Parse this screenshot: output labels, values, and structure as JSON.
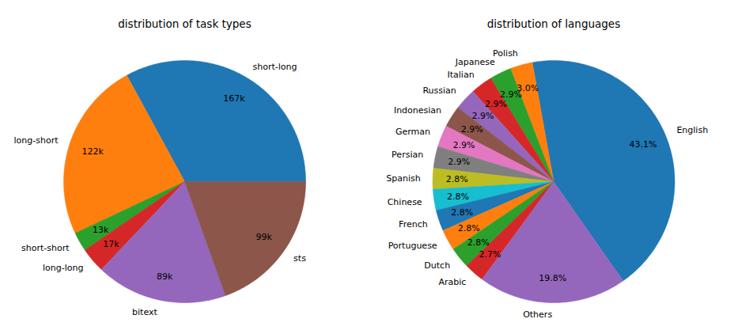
{
  "chart_data": [
    {
      "type": "pie",
      "title": "distribution of task types",
      "categories": [
        "short-long",
        "long-short",
        "short-short",
        "long-long",
        "bitext",
        "sts"
      ],
      "values": [
        167000,
        122000,
        13000,
        17000,
        89000,
        99000
      ],
      "value_labels": [
        "167k",
        "122k",
        "13k",
        "17k",
        "89k",
        "99k"
      ],
      "colors": [
        "#1f77b4",
        "#ff7f0e",
        "#2ca02c",
        "#d62728",
        "#9467bd",
        "#8c564b"
      ],
      "data_labels": true
    },
    {
      "type": "pie",
      "title": "distribution of languages",
      "categories": [
        "English",
        "Polish",
        "Japanese",
        "Italian",
        "Russian",
        "Indonesian",
        "German",
        "Persian",
        "Spanish",
        "Chinese",
        "French",
        "Portuguese",
        "Dutch",
        "Arabic",
        "Others"
      ],
      "values": [
        43.1,
        3.0,
        2.9,
        2.9,
        2.9,
        2.9,
        2.9,
        2.9,
        2.8,
        2.8,
        2.8,
        2.8,
        2.8,
        2.7,
        19.8
      ],
      "value_labels": [
        "43.1%",
        "3.0%",
        "2.9%",
        "2.9%",
        "2.9%",
        "2.9%",
        "2.9%",
        "2.9%",
        "2.8%",
        "2.8%",
        "2.8%",
        "2.8%",
        "2.8%",
        "2.7%",
        "19.8%"
      ],
      "colors": [
        "#1f77b4",
        "#ff7f0e",
        "#2ca02c",
        "#d62728",
        "#9467bd",
        "#8c564b",
        "#e377c2",
        "#7f7f7f",
        "#bcbd22",
        "#17becf",
        "#1f77b4",
        "#ff7f0e",
        "#2ca02c",
        "#d62728",
        "#9467bd"
      ],
      "data_labels": true
    }
  ]
}
